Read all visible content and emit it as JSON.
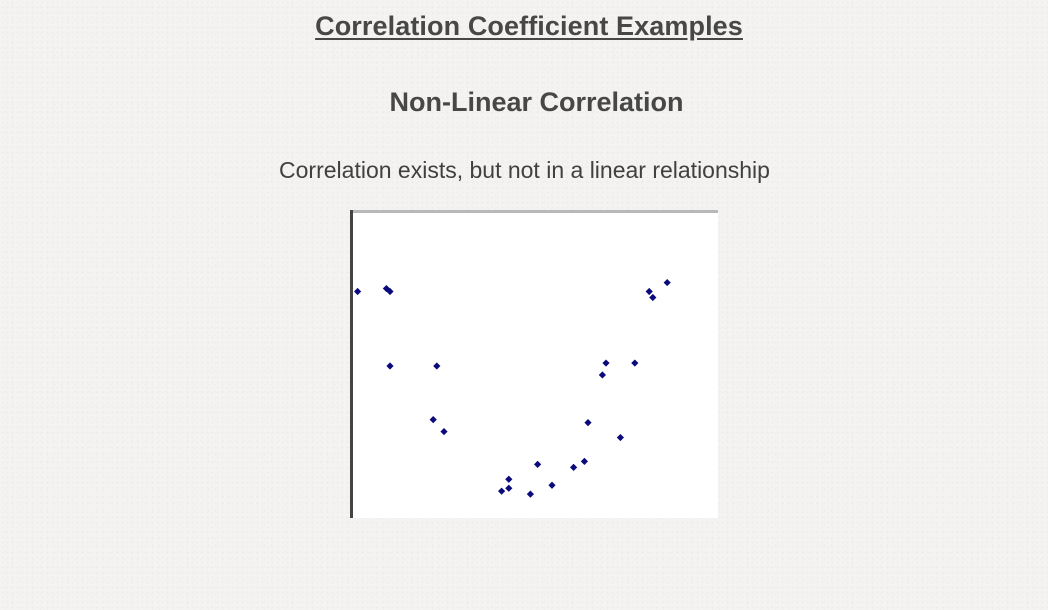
{
  "header": {
    "title": "Correlation Coefficient Examples",
    "heading": "Non-Linear Correlation",
    "description": "Correlation exists, but not in a linear relationship"
  },
  "colors": {
    "marker": "#0a0a7c",
    "axis": "#444444",
    "top_border": "#b8b8b8",
    "text": "#444444"
  },
  "chart_data": {
    "type": "scatter",
    "title": "",
    "xlabel": "",
    "ylabel": "",
    "axes_ticks_visible": false,
    "grid": false,
    "legend": "none",
    "xlim": [
      0,
      10
    ],
    "ylim": [
      0,
      10
    ],
    "series": [
      {
        "points": [
          [
            0.1,
            7.6
          ],
          [
            0.9,
            7.7
          ],
          [
            1.0,
            7.6
          ],
          [
            1.0,
            5.1
          ],
          [
            2.3,
            5.1
          ],
          [
            2.2,
            3.3
          ],
          [
            2.5,
            2.9
          ],
          [
            4.1,
            0.9
          ],
          [
            4.3,
            1.0
          ],
          [
            4.3,
            1.3
          ],
          [
            4.9,
            0.8
          ],
          [
            5.1,
            1.8
          ],
          [
            5.5,
            1.1
          ],
          [
            6.1,
            1.7
          ],
          [
            6.4,
            1.9
          ],
          [
            6.5,
            3.2
          ],
          [
            6.9,
            4.8
          ],
          [
            7.0,
            5.2
          ],
          [
            7.4,
            2.7
          ],
          [
            7.8,
            5.2
          ],
          [
            8.2,
            7.6
          ],
          [
            8.3,
            7.4
          ],
          [
            8.7,
            7.9
          ]
        ]
      }
    ]
  }
}
